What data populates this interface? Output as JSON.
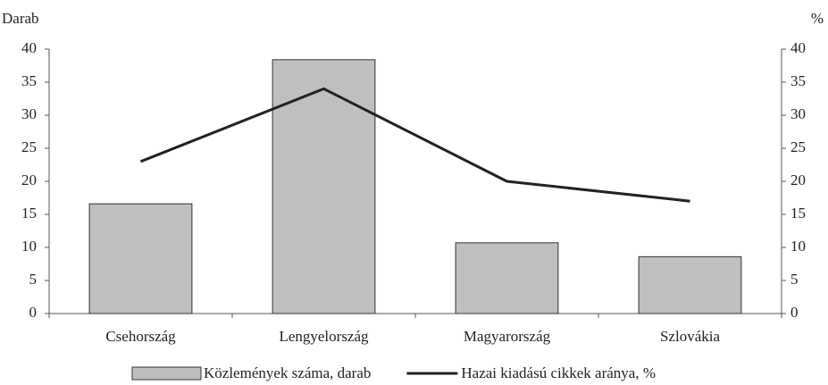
{
  "chart_data": {
    "type": "bar",
    "y_label": "Darab",
    "y2_label": "%",
    "categories": [
      "Csehország",
      "Lengyelország",
      "Magyarország",
      "Szlovákia"
    ],
    "series": [
      {
        "name": "Közlemények száma, darab",
        "type": "bar",
        "color": "#bfbfbf",
        "values": [
          16.6,
          38.4,
          10.7,
          8.6
        ]
      },
      {
        "name": "Hazai kiadású cikkek aránya, %",
        "type": "line",
        "axis": "y2",
        "color": "#222222",
        "values": [
          23,
          34,
          20,
          17
        ]
      }
    ],
    "ylim": [
      0,
      40
    ],
    "yticks": [
      0,
      5,
      10,
      15,
      20,
      25,
      30,
      35,
      40
    ],
    "y2lim": [
      0,
      40
    ],
    "y2ticks": [
      0,
      5,
      10,
      15,
      20,
      25,
      30,
      35,
      40
    ],
    "legend": "bottom"
  }
}
